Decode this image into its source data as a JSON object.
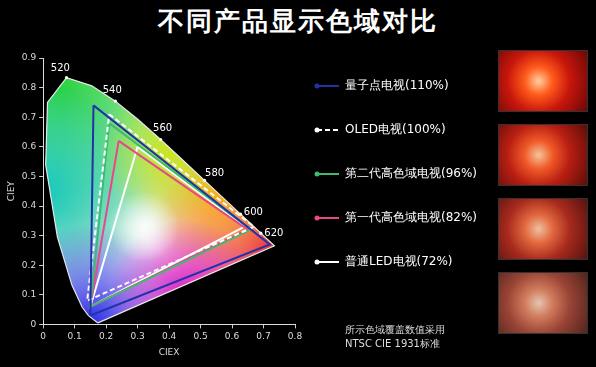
{
  "chart_data": {
    "type": "scatter",
    "title": "不同产品显示色域对比",
    "x_label": "CIEX",
    "y_label": "CIEY",
    "xlim": [
      0,
      0.8
    ],
    "ylim": [
      0,
      0.9
    ],
    "xticks": [
      0,
      0.1,
      0.2,
      0.3,
      0.4,
      0.5,
      0.6,
      0.7,
      0.8
    ],
    "yticks": [
      0,
      0.1,
      0.2,
      0.3,
      0.4,
      0.5,
      0.6,
      0.7,
      0.8,
      0.9
    ],
    "grid": false,
    "legend": "right",
    "spectral_locus": {
      "x": [
        0.1741,
        0.144,
        0.1241,
        0.0913,
        0.0454,
        0.0082,
        0.0139,
        0.0743,
        0.1547,
        0.2296,
        0.3016,
        0.3731,
        0.4441,
        0.5125,
        0.5752,
        0.627,
        0.6658,
        0.6915,
        0.7347
      ],
      "values": [
        0.005,
        0.0297,
        0.0578,
        0.1327,
        0.295,
        0.5384,
        0.7502,
        0.8338,
        0.8059,
        0.7543,
        0.6923,
        0.6245,
        0.5547,
        0.4866,
        0.4242,
        0.3725,
        0.334,
        0.3083,
        0.2653
      ],
      "point_labels": [
        null,
        null,
        null,
        null,
        null,
        null,
        null,
        520,
        null,
        540,
        null,
        560,
        null,
        580,
        null,
        600,
        null,
        620,
        null
      ]
    },
    "series": [
      {
        "name": "量子点电视(110%)",
        "color": "#2233a8",
        "line_style": "solid",
        "marker": "none",
        "x": [
          0.16,
          0.72,
          0.15,
          0.16
        ],
        "values": [
          0.74,
          0.27,
          0.03,
          0.74
        ]
      },
      {
        "name": "OLED电视(100%)",
        "color": "#ffffff",
        "line_style": "dashed",
        "marker": "none",
        "x": [
          0.21,
          0.67,
          0.14,
          0.21
        ],
        "values": [
          0.71,
          0.33,
          0.08,
          0.71
        ]
      },
      {
        "name": "第二代高色域电视(96%)",
        "color": "#3dbb6e",
        "line_style": "solid",
        "marker": "none",
        "x": [
          0.21,
          0.66,
          0.15,
          0.21
        ],
        "values": [
          0.68,
          0.32,
          0.06,
          0.68
        ]
      },
      {
        "name": "第一代高色域电视(82%)",
        "color": "#e8478a",
        "line_style": "solid",
        "marker": "none",
        "x": [
          0.24,
          0.65,
          0.15,
          0.24
        ],
        "values": [
          0.62,
          0.32,
          0.06,
          0.62
        ]
      },
      {
        "name": "普通LED电视(72%)",
        "color": "#ffffff",
        "line_style": "solid",
        "marker": "none",
        "x": [
          0.3,
          0.64,
          0.15,
          0.3
        ],
        "values": [
          0.6,
          0.33,
          0.06,
          0.6
        ]
      }
    ],
    "footnote": [
      "所示色域覆盖数值采用",
      "NTSC CIE 1931标准"
    ]
  }
}
